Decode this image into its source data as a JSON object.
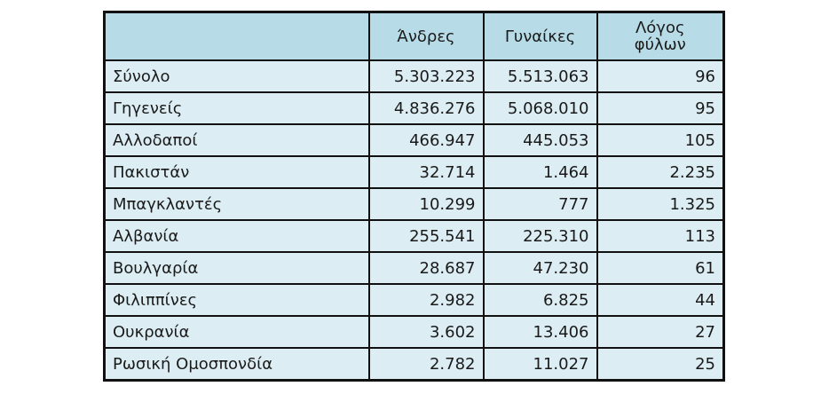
{
  "table": {
    "headers": [
      "",
      "Άνδρες",
      "Γυναίκες",
      "Λόγος φύλων"
    ],
    "header_ratio_line1": "Λόγος",
    "header_ratio_line2": "φύλων",
    "rows": [
      {
        "name": "Σύνολο",
        "men": "5.303.223",
        "women": "5.513.063",
        "ratio": "96"
      },
      {
        "name": "Γηγενείς",
        "men": "4.836.276",
        "women": "5.068.010",
        "ratio": "95"
      },
      {
        "name": "Αλλοδαποί",
        "men": "466.947",
        "women": "445.053",
        "ratio": "105"
      },
      {
        "name": "Πακιστάν",
        "men": "32.714",
        "women": "1.464",
        "ratio": "2.235"
      },
      {
        "name": "Μπαγκλαντές",
        "men": "10.299",
        "women": "777",
        "ratio": "1.325"
      },
      {
        "name": "Αλβανία",
        "men": "255.541",
        "women": "225.310",
        "ratio": "113"
      },
      {
        "name": "Βουλγαρία",
        "men": "28.687",
        "women": "47.230",
        "ratio": "61"
      },
      {
        "name": "Φιλιππίνες",
        "men": "2.982",
        "women": "6.825",
        "ratio": "44"
      },
      {
        "name": "Ουκρανία",
        "men": "3.602",
        "women": "13.406",
        "ratio": "27"
      },
      {
        "name": "Ρωσική Ομοσπονδία",
        "men": "2.782",
        "women": "11.027",
        "ratio": "25"
      }
    ]
  },
  "colors": {
    "header_bg": "#b8dce7",
    "body_bg": "#dcedf3",
    "border": "#111111"
  }
}
